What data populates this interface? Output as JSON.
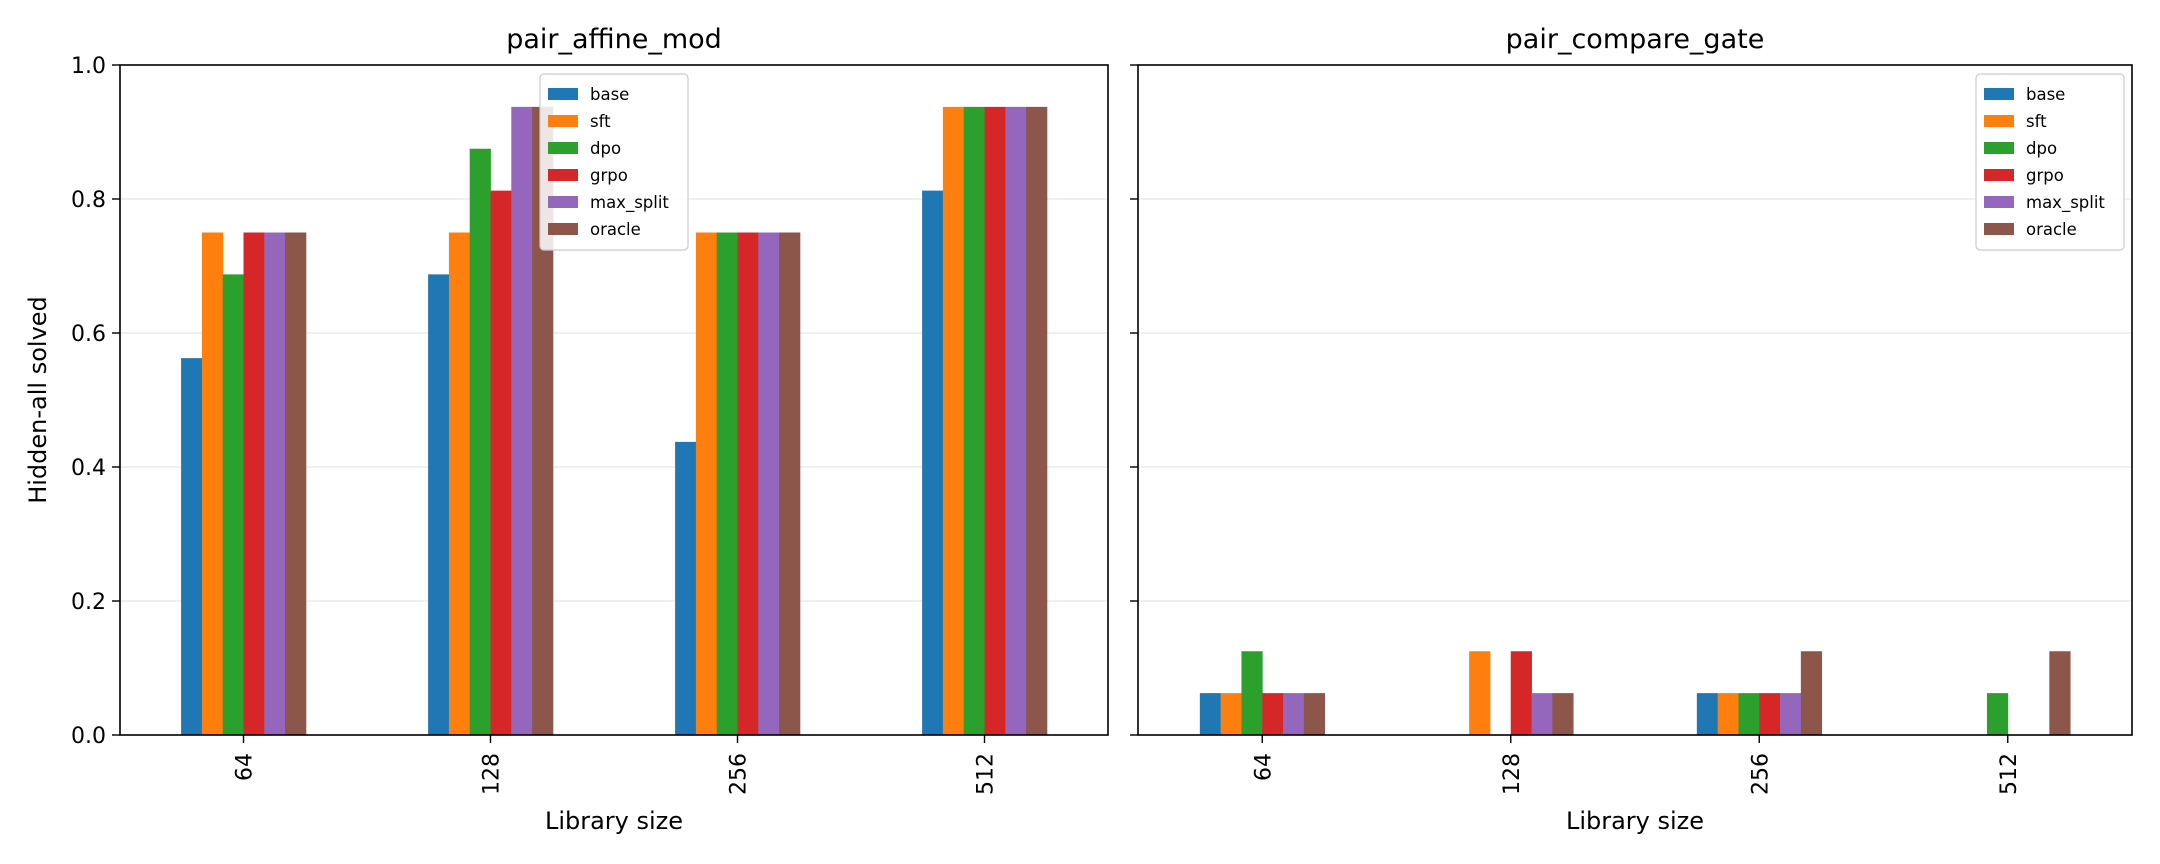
{
  "chart_data": [
    {
      "type": "bar",
      "title": "pair_affine_mod",
      "xlabel": "Library size",
      "ylabel": "Hidden-all solved",
      "categories": [
        "64",
        "128",
        "256",
        "512"
      ],
      "ylim": [
        0,
        1.0
      ],
      "yticks": [
        "0.0",
        "0.2",
        "0.4",
        "0.6",
        "0.8",
        "1.0"
      ],
      "grid": "horizontal",
      "legend": "top-center",
      "series": [
        {
          "name": "base",
          "color": "#1f77b4",
          "values": [
            0.5625,
            0.6875,
            0.4375,
            0.8125
          ]
        },
        {
          "name": "sft",
          "color": "#ff7f0e",
          "values": [
            0.75,
            0.75,
            0.75,
            0.9375
          ]
        },
        {
          "name": "dpo",
          "color": "#2ca02c",
          "values": [
            0.6875,
            0.875,
            0.75,
            0.9375
          ]
        },
        {
          "name": "grpo",
          "color": "#d62728",
          "values": [
            0.75,
            0.8125,
            0.75,
            0.9375
          ]
        },
        {
          "name": "max_split",
          "color": "#9467bd",
          "values": [
            0.75,
            0.9375,
            0.75,
            0.9375
          ]
        },
        {
          "name": "oracle",
          "color": "#8c564b",
          "values": [
            0.75,
            0.9375,
            0.75,
            0.9375
          ]
        }
      ]
    },
    {
      "type": "bar",
      "title": "pair_compare_gate",
      "xlabel": "Library size",
      "ylabel": "",
      "categories": [
        "64",
        "128",
        "256",
        "512"
      ],
      "ylim": [
        0,
        1.0
      ],
      "grid": "horizontal",
      "legend": "top-right",
      "series": [
        {
          "name": "base",
          "color": "#1f77b4",
          "values": [
            0.0625,
            0,
            0.0625,
            0
          ]
        },
        {
          "name": "sft",
          "color": "#ff7f0e",
          "values": [
            0.0625,
            0.125,
            0.0625,
            0
          ]
        },
        {
          "name": "dpo",
          "color": "#2ca02c",
          "values": [
            0.125,
            0,
            0.0625,
            0.0625
          ]
        },
        {
          "name": "grpo",
          "color": "#d62728",
          "values": [
            0.0625,
            0.125,
            0.0625,
            0
          ]
        },
        {
          "name": "max_split",
          "color": "#9467bd",
          "values": [
            0.0625,
            0.0625,
            0.0625,
            0
          ]
        },
        {
          "name": "oracle",
          "color": "#8c564b",
          "values": [
            0.0625,
            0.0625,
            0.125,
            0.125
          ]
        }
      ]
    }
  ]
}
